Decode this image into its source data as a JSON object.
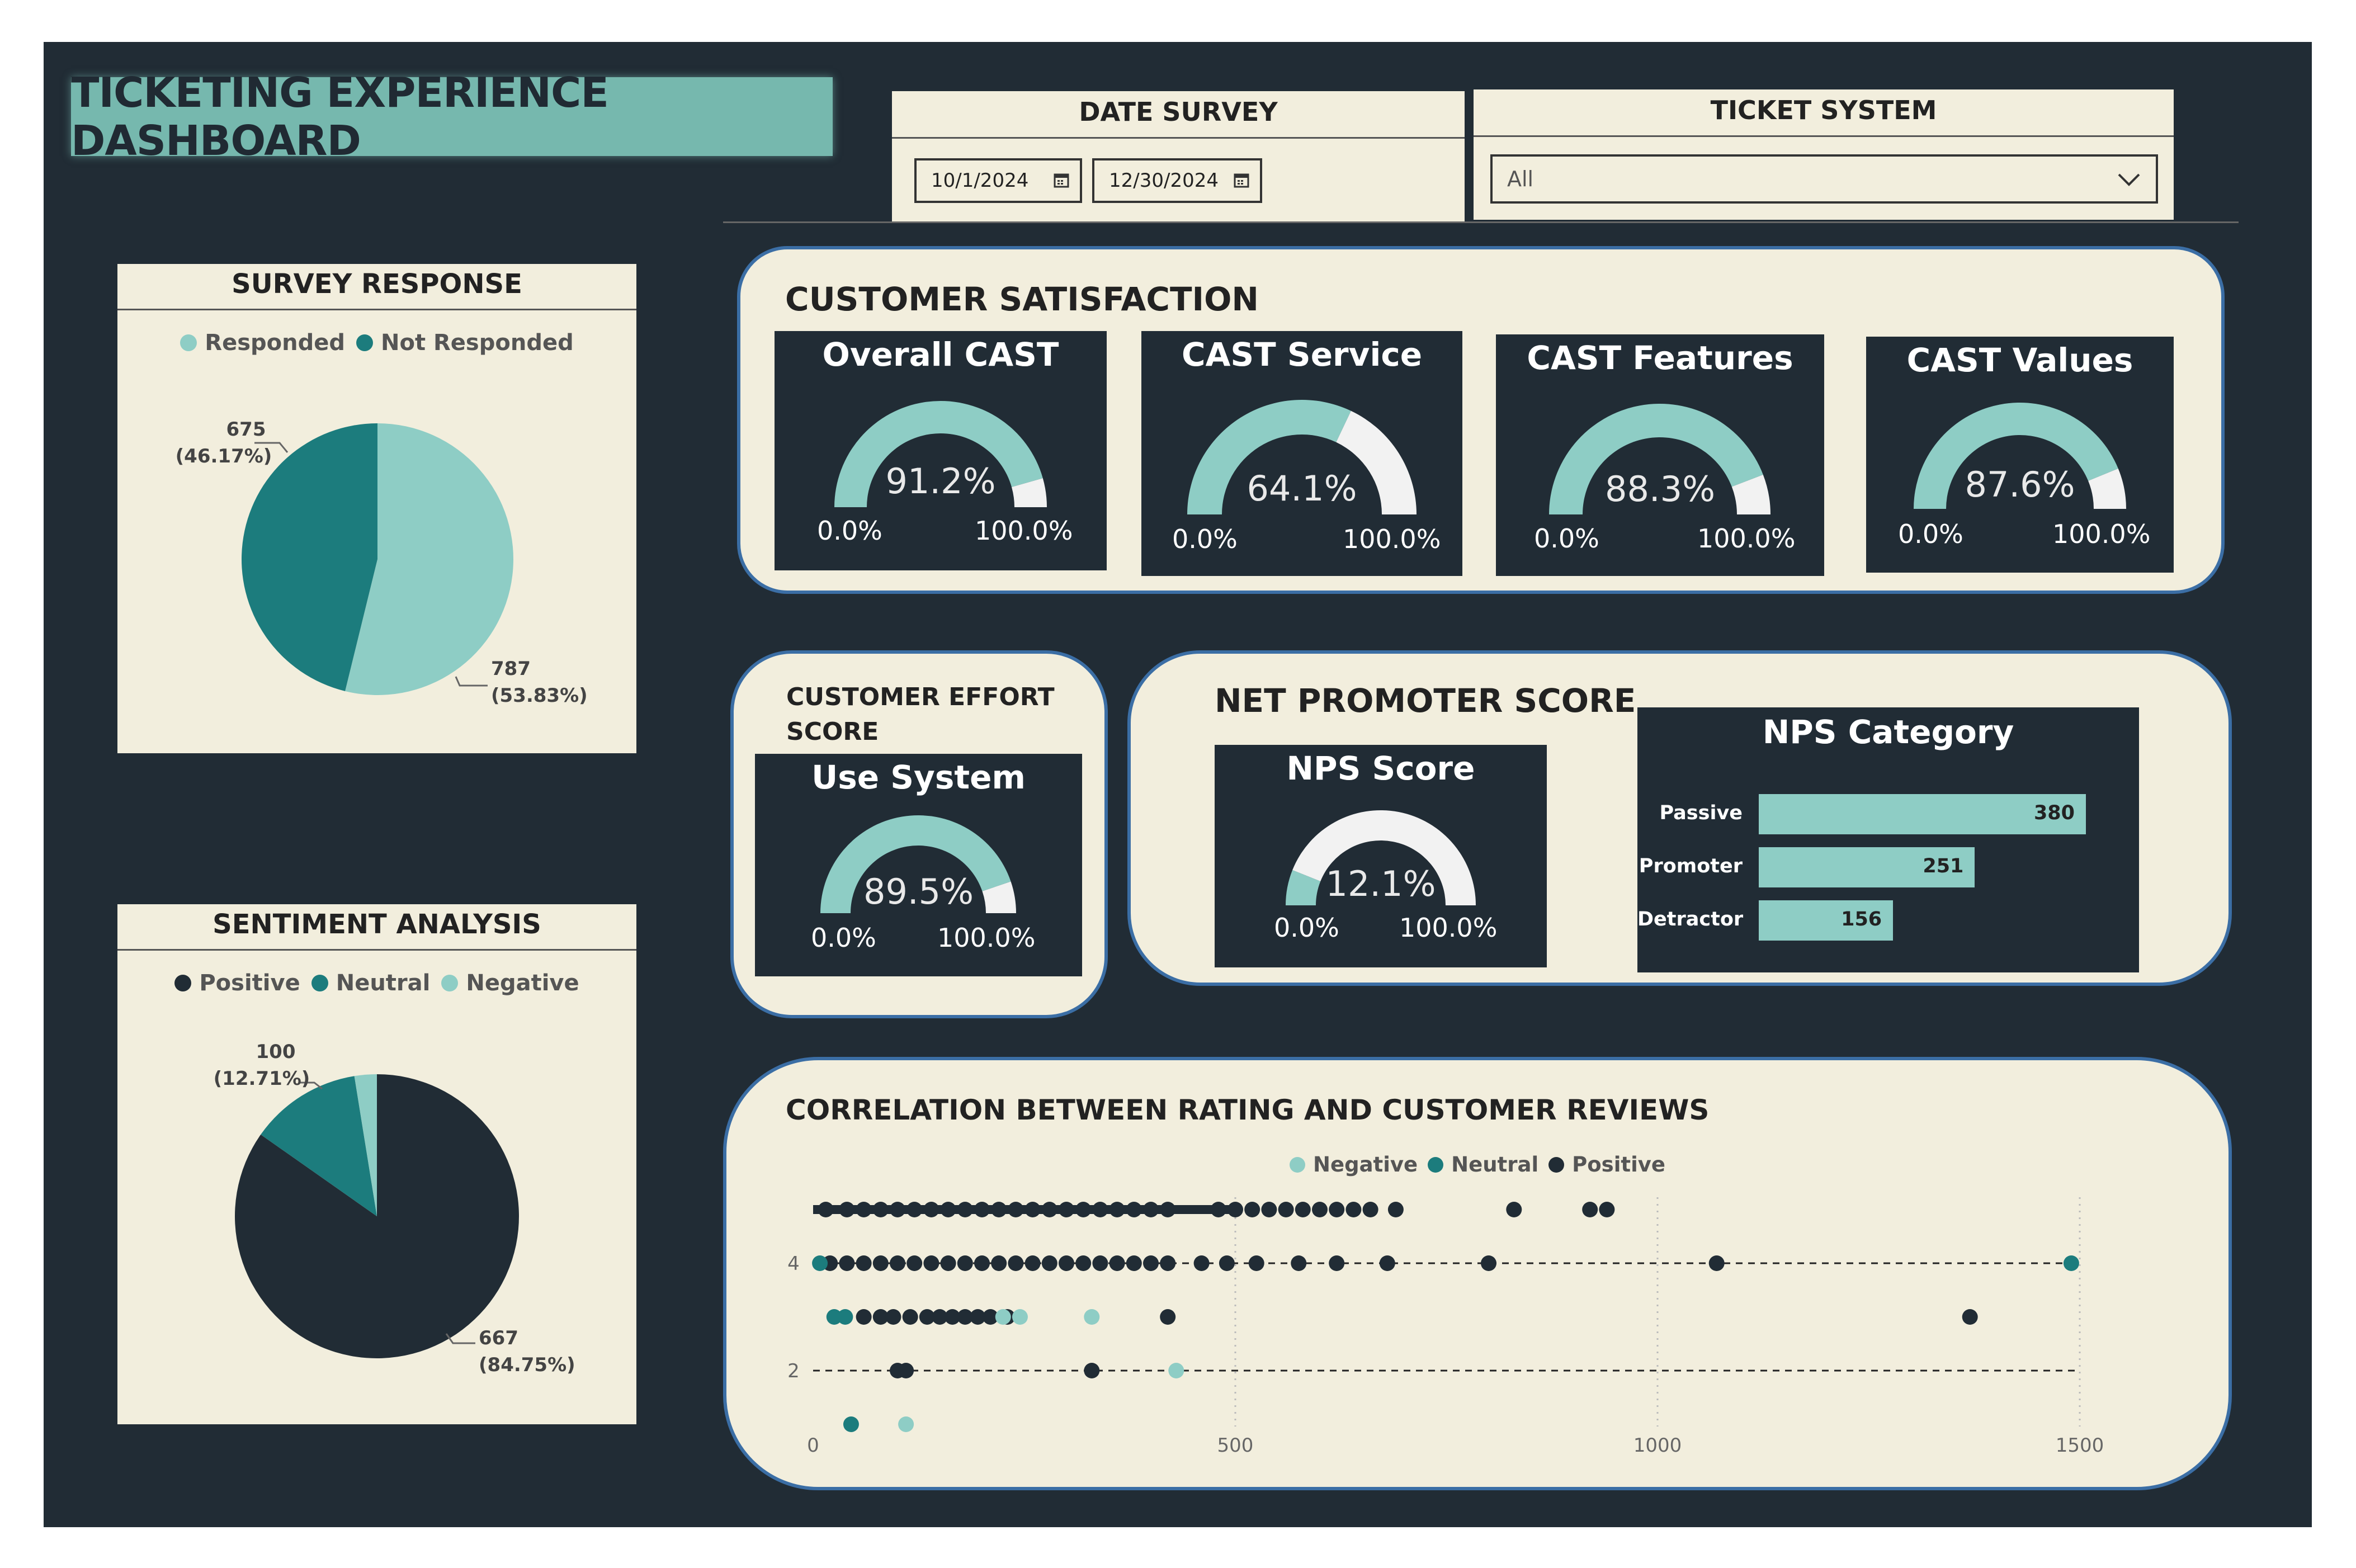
{
  "colors": {
    "background": "#212c35",
    "panel": "#f2eedd",
    "accent_teal": "#8ecdc5",
    "dark_teal": "#1c7c7d",
    "title_teal": "#76b8ae",
    "gauge_remainder": "#f2f2f2"
  },
  "header": {
    "title": "TICKETING EXPERIENCE DASHBOARD"
  },
  "filters": {
    "date_survey": {
      "label": "DATE SURVEY",
      "start": "10/1/2024",
      "end": "12/30/2024",
      "icon": "calendar-icon"
    },
    "ticket_system": {
      "label": "TICKET SYSTEM",
      "value": "All",
      "icon": "chevron-down-icon"
    }
  },
  "survey_response": {
    "title": "SURVEY RESPONSE",
    "legend": [
      "Responded",
      "Not Responded"
    ],
    "labels": {
      "not_responded_count": "675",
      "not_responded_pct": "(46.17%)",
      "responded_count": "787",
      "responded_pct": "(53.83%)"
    }
  },
  "sentiment": {
    "title": "SENTIMENT ANALYSIS",
    "legend": [
      "Positive",
      "Neutral",
      "Negative"
    ],
    "labels": {
      "neutral_count": "100",
      "neutral_pct": "(12.71%)",
      "positive_count": "667",
      "positive_pct": "(84.75%)"
    }
  },
  "customer_satisfaction": {
    "title": "CUSTOMER SATISFACTION",
    "gauges": [
      {
        "title": "Overall CAST",
        "value": "91.2%",
        "fraction": 0.912,
        "min": "0.0%",
        "max": "100.0%"
      },
      {
        "title": "CAST Service",
        "value": "64.1%",
        "fraction": 0.641,
        "min": "0.0%",
        "max": "100.0%"
      },
      {
        "title": "CAST Features",
        "value": "88.3%",
        "fraction": 0.883,
        "min": "0.0%",
        "max": "100.0%"
      },
      {
        "title": "CAST Values",
        "value": "87.6%",
        "fraction": 0.876,
        "min": "0.0%",
        "max": "100.0%"
      }
    ]
  },
  "customer_effort": {
    "title_line1": "CUSTOMER EFFORT",
    "title_line2": "SCORE",
    "gauge": {
      "title": "Use System",
      "value": "89.5%",
      "fraction": 0.895,
      "min": "0.0%",
      "max": "100.0%"
    }
  },
  "nps": {
    "title": "NET PROMOTER SCORE",
    "gauge": {
      "title": "NPS Score",
      "value": "12.1%",
      "fraction": 0.121,
      "min": "0.0%",
      "max": "100.0%"
    },
    "category": {
      "title": "NPS Category",
      "items": [
        {
          "label": "Passive",
          "value": "380"
        },
        {
          "label": "Promoter",
          "value": "251"
        },
        {
          "label": "Detractor",
          "value": "156"
        }
      ]
    }
  },
  "correlation": {
    "title": "CORRELATION BETWEEN RATING AND CUSTOMER REVIEWS",
    "legend": [
      "Negative",
      "Neutral",
      "Positive"
    ]
  },
  "chart_data": [
    {
      "type": "pie",
      "title": "SURVEY RESPONSE",
      "categories": [
        "Responded",
        "Not Responded"
      ],
      "values": [
        787,
        675
      ],
      "percent": [
        53.83,
        46.17
      ],
      "colors": [
        "#8ecdc5",
        "#1c7c7d"
      ],
      "legend": "top"
    },
    {
      "type": "pie",
      "title": "SENTIMENT ANALYSIS",
      "categories": [
        "Positive",
        "Neutral",
        "Negative"
      ],
      "values": [
        667,
        100,
        20
      ],
      "percent": [
        84.75,
        12.71,
        2.54
      ],
      "colors": [
        "#212c35",
        "#1c7c7d",
        "#8ecdc5"
      ],
      "legend": "top"
    },
    {
      "type": "bar",
      "title": "NPS Category",
      "orientation": "horizontal",
      "categories": [
        "Passive",
        "Promoter",
        "Detractor"
      ],
      "values": [
        380,
        251,
        156
      ]
    },
    {
      "type": "scatter",
      "title": "CORRELATION BETWEEN RATING AND CUSTOMER REVIEWS",
      "xlim": [
        0,
        1600
      ],
      "ylim": [
        1,
        5
      ],
      "x_ticks": [
        "0",
        "500",
        "1000",
        "1500"
      ],
      "y_ticks": [
        "2",
        "4"
      ],
      "grid": "vertical dotted",
      "legend": "top",
      "series": [
        {
          "name": "Positive",
          "color": "#212c35",
          "points": [
            [
              15,
              5
            ],
            [
              40,
              5
            ],
            [
              60,
              5
            ],
            [
              80,
              5
            ],
            [
              100,
              5
            ],
            [
              120,
              5
            ],
            [
              140,
              5
            ],
            [
              160,
              5
            ],
            [
              180,
              5
            ],
            [
              200,
              5
            ],
            [
              220,
              5
            ],
            [
              240,
              5
            ],
            [
              260,
              5
            ],
            [
              280,
              5
            ],
            [
              300,
              5
            ],
            [
              320,
              5
            ],
            [
              340,
              5
            ],
            [
              360,
              5
            ],
            [
              380,
              5
            ],
            [
              400,
              5
            ],
            [
              420,
              5
            ],
            [
              480,
              5
            ],
            [
              500,
              5
            ],
            [
              520,
              5
            ],
            [
              540,
              5
            ],
            [
              560,
              5
            ],
            [
              580,
              5
            ],
            [
              600,
              5
            ],
            [
              620,
              5
            ],
            [
              640,
              5
            ],
            [
              660,
              5
            ],
            [
              690,
              5
            ],
            [
              830,
              5
            ],
            [
              920,
              5
            ],
            [
              940,
              5
            ],
            [
              20,
              4
            ],
            [
              40,
              4
            ],
            [
              60,
              4
            ],
            [
              80,
              4
            ],
            [
              100,
              4
            ],
            [
              120,
              4
            ],
            [
              140,
              4
            ],
            [
              160,
              4
            ],
            [
              180,
              4
            ],
            [
              200,
              4
            ],
            [
              220,
              4
            ],
            [
              240,
              4
            ],
            [
              260,
              4
            ],
            [
              280,
              4
            ],
            [
              300,
              4
            ],
            [
              320,
              4
            ],
            [
              340,
              4
            ],
            [
              360,
              4
            ],
            [
              380,
              4
            ],
            [
              400,
              4
            ],
            [
              420,
              4
            ],
            [
              460,
              4
            ],
            [
              490,
              4
            ],
            [
              525,
              4
            ],
            [
              575,
              4
            ],
            [
              620,
              4
            ],
            [
              680,
              4
            ],
            [
              800,
              4
            ],
            [
              1070,
              4
            ],
            [
              60,
              3
            ],
            [
              80,
              3
            ],
            [
              95,
              3
            ],
            [
              115,
              3
            ],
            [
              135,
              3
            ],
            [
              150,
              3
            ],
            [
              165,
              3
            ],
            [
              180,
              3
            ],
            [
              195,
              3
            ],
            [
              210,
              3
            ],
            [
              230,
              3
            ],
            [
              420,
              3
            ],
            [
              1370,
              3
            ],
            [
              100,
              2
            ],
            [
              110,
              2
            ],
            [
              330,
              2
            ]
          ]
        },
        {
          "name": "Neutral",
          "color": "#1c7c7d",
          "points": [
            [
              8,
              4
            ],
            [
              1490,
              4
            ],
            [
              25,
              3
            ],
            [
              38,
              3
            ],
            [
              45,
              1
            ]
          ]
        },
        {
          "name": "Negative",
          "color": "#8ecdc5",
          "points": [
            [
              225,
              3
            ],
            [
              245,
              3
            ],
            [
              330,
              3
            ],
            [
              430,
              2
            ],
            [
              110,
              1
            ]
          ]
        }
      ]
    }
  ]
}
